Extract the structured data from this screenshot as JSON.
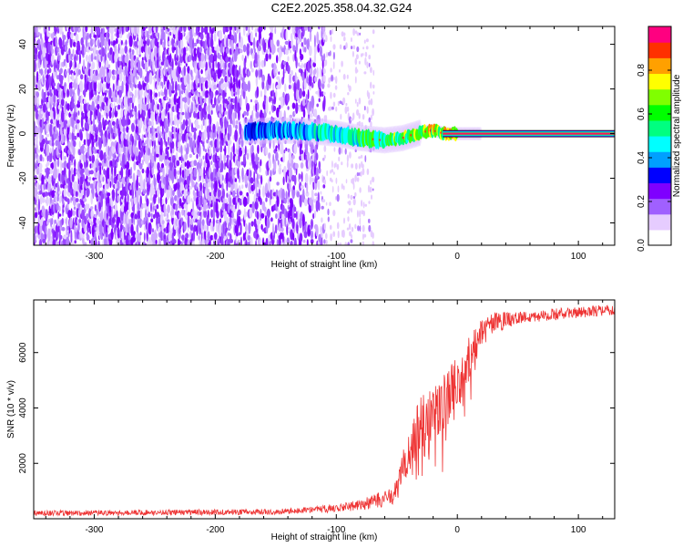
{
  "title": "C2E2.2025.358.04.32.G24",
  "chart_data": [
    {
      "type": "heatmap",
      "xlabel": "Height of straight line (km)",
      "ylabel": "Frequency (Hz)",
      "xlim": [
        -350,
        130
      ],
      "ylim": [
        -50,
        48
      ],
      "xticks": [
        -300,
        -200,
        -100,
        0,
        100
      ],
      "yticks": [
        -40,
        -20,
        0,
        20,
        40
      ],
      "colorbar": {
        "label": "Normalized spectral amplitude",
        "range": [
          0.0,
          1.0
        ],
        "ticks": [
          "0.0",
          "0.2",
          "0.4",
          "0.6",
          "0.8"
        ],
        "colors": [
          "#ffffff",
          "#e6ccff",
          "#a060ff",
          "#7f00ff",
          "#0000ff",
          "#00a0ff",
          "#00ffff",
          "#00ff80",
          "#00ff00",
          "#80ff00",
          "#ffff00",
          "#ffa000",
          "#ff3000",
          "#ff0080"
        ]
      },
      "features": {
        "noise_region_km": [
          -350,
          -110
        ],
        "sparse_noise_region_km": [
          -110,
          -70
        ],
        "carrier_start_km": -175,
        "carrier_track": [
          {
            "x": -175,
            "y": 1.0
          },
          {
            "x": -150,
            "y": 1.5
          },
          {
            "x": -120,
            "y": 1.0
          },
          {
            "x": -100,
            "y": 0.0
          },
          {
            "x": -80,
            "y": -2.0
          },
          {
            "x": -60,
            "y": -3.0
          },
          {
            "x": -45,
            "y": -2.0
          },
          {
            "x": -30,
            "y": 0.5
          },
          {
            "x": -20,
            "y": 1.5
          },
          {
            "x": -10,
            "y": 0.0
          },
          {
            "x": 0,
            "y": 0.0
          },
          {
            "x": 130,
            "y": 0.0
          }
        ]
      }
    },
    {
      "type": "line",
      "xlabel": "Height of straight line (km)",
      "ylabel": "SNR (10 * v/v)",
      "xlim": [
        -350,
        130
      ],
      "ylim": [
        0,
        7900
      ],
      "xticks": [
        -300,
        -200,
        -100,
        0,
        100
      ],
      "yticks": [
        2000,
        4000,
        6000
      ],
      "color": "#ee3333",
      "profile": [
        {
          "x": -350,
          "y": 200
        },
        {
          "x": -150,
          "y": 250
        },
        {
          "x": -110,
          "y": 350
        },
        {
          "x": -80,
          "y": 500
        },
        {
          "x": -60,
          "y": 700
        },
        {
          "x": -50,
          "y": 1000
        },
        {
          "x": -40,
          "y": 2500
        },
        {
          "x": -30,
          "y": 3500
        },
        {
          "x": -20,
          "y": 3800
        },
        {
          "x": -10,
          "y": 4200
        },
        {
          "x": 0,
          "y": 4800
        },
        {
          "x": 10,
          "y": 5800
        },
        {
          "x": 20,
          "y": 6700
        },
        {
          "x": 30,
          "y": 7050
        },
        {
          "x": 50,
          "y": 7250
        },
        {
          "x": 80,
          "y": 7380
        },
        {
          "x": 100,
          "y": 7450
        },
        {
          "x": 130,
          "y": 7550
        }
      ],
      "noise_amplitude": [
        {
          "x": -350,
          "y": 100
        },
        {
          "x": -130,
          "y": 100
        },
        {
          "x": -80,
          "y": 200
        },
        {
          "x": -50,
          "y": 400
        },
        {
          "x": -40,
          "y": 900
        },
        {
          "x": 0,
          "y": 1100
        },
        {
          "x": 20,
          "y": 500
        },
        {
          "x": 50,
          "y": 220
        },
        {
          "x": 130,
          "y": 200
        }
      ]
    }
  ]
}
